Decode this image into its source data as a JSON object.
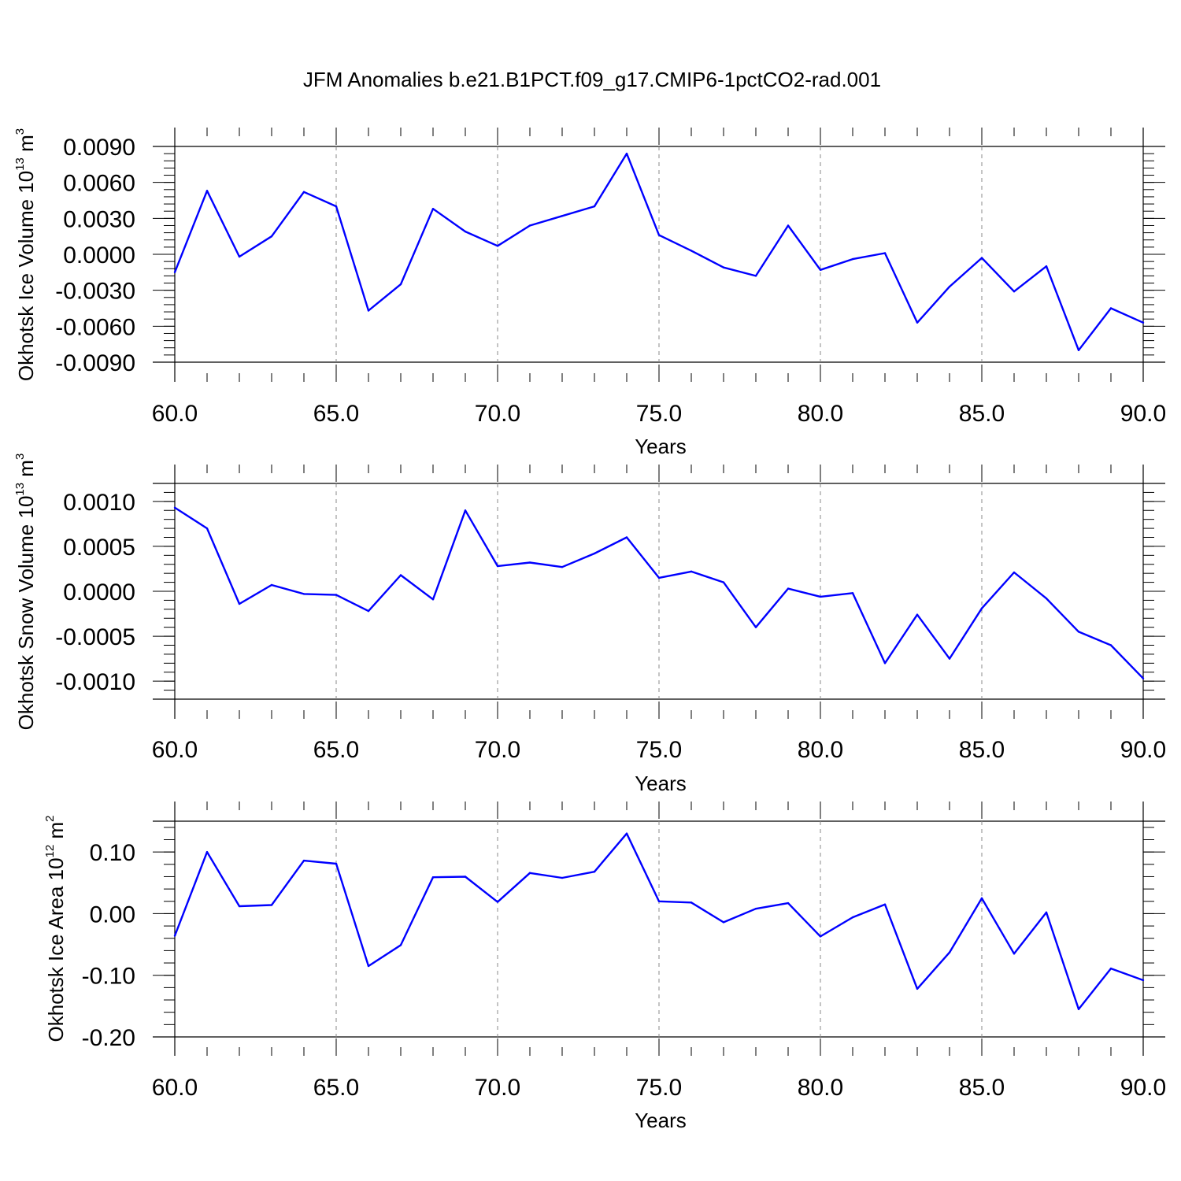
{
  "title": "JFM Anomalies b.e21.B1PCT.f09_g17.CMIP6-1pctCO2-rad.001",
  "colors": {
    "series": "#0000ff",
    "axes": "#000000",
    "grid": "#888888",
    "background": "#ffffff"
  },
  "chart_data": [
    {
      "type": "line",
      "name": "ice-volume",
      "ylabel": "Okhotsk Ice Volume 10",
      "ylabel_exp": "13",
      "ylabel_unit": " m",
      "ylabel_unit_exp": "3",
      "xlabel": "Years",
      "xlim": [
        60,
        90
      ],
      "ylim": [
        -0.009,
        0.009
      ],
      "xticks": [
        60,
        65,
        70,
        75,
        80,
        85,
        90
      ],
      "xtick_labels": [
        "60.0",
        "65.0",
        "70.0",
        "75.0",
        "80.0",
        "85.0",
        "90.0"
      ],
      "yticks": [
        0.009,
        0.006,
        0.003,
        0.0,
        -0.003,
        -0.006,
        -0.009
      ],
      "ytick_labels": [
        "0.0090",
        "0.0060",
        "0.0030",
        "0.0000",
        "-0.0030",
        "-0.0060",
        "-0.0090"
      ],
      "grid": "vertical dashed at major x ticks",
      "x": [
        60,
        61,
        62,
        63,
        64,
        65,
        66,
        67,
        68,
        69,
        70,
        71,
        72,
        73,
        74,
        75,
        76,
        77,
        78,
        79,
        80,
        81,
        82,
        83,
        84,
        85,
        86,
        87,
        88,
        89,
        90
      ],
      "values": [
        -0.0015,
        0.0053,
        -0.0002,
        0.0015,
        0.0052,
        0.004,
        -0.0047,
        -0.0025,
        0.0038,
        0.0019,
        0.0007,
        0.0024,
        0.0032,
        0.004,
        0.0084,
        0.0016,
        0.0003,
        -0.0011,
        -0.0018,
        0.0024,
        -0.0013,
        -0.0004,
        0.0001,
        -0.0057,
        -0.0027,
        -0.0003,
        -0.0031,
        -0.001,
        -0.008,
        -0.0045,
        -0.0057
      ]
    },
    {
      "type": "line",
      "name": "snow-volume",
      "ylabel": "Okhotsk Snow Volume 10",
      "ylabel_exp": "13",
      "ylabel_unit": " m",
      "ylabel_unit_exp": "3",
      "xlabel": "Years",
      "xlim": [
        60,
        90
      ],
      "ylim": [
        -0.0012,
        0.0012
      ],
      "xticks": [
        60,
        65,
        70,
        75,
        80,
        85,
        90
      ],
      "xtick_labels": [
        "60.0",
        "65.0",
        "70.0",
        "75.0",
        "80.0",
        "85.0",
        "90.0"
      ],
      "yticks": [
        0.001,
        0.0005,
        0.0,
        -0.0005,
        -0.001
      ],
      "ytick_labels": [
        "0.0010",
        "0.0005",
        "0.0000",
        "-0.0005",
        "-0.0010"
      ],
      "grid": "vertical dashed at major x ticks",
      "x": [
        60,
        61,
        62,
        63,
        64,
        65,
        66,
        67,
        68,
        69,
        70,
        71,
        72,
        73,
        74,
        75,
        76,
        77,
        78,
        79,
        80,
        81,
        82,
        83,
        84,
        85,
        86,
        87,
        88,
        89,
        90
      ],
      "values": [
        0.00093,
        0.0007,
        -0.00014,
        7e-05,
        -3e-05,
        -4e-05,
        -0.00022,
        0.00018,
        -9e-05,
        0.0009,
        0.00028,
        0.00032,
        0.00027,
        0.00042,
        0.0006,
        0.00015,
        0.00022,
        0.0001,
        -0.0004,
        3e-05,
        -6e-05,
        -2e-05,
        -0.0008,
        -0.00026,
        -0.00075,
        -0.00019,
        0.00021,
        -8e-05,
        -0.00045,
        -0.0006,
        -0.00097
      ]
    },
    {
      "type": "line",
      "name": "ice-area",
      "ylabel": "Okhotsk Ice Area 10",
      "ylabel_exp": "12",
      "ylabel_unit": " m",
      "ylabel_unit_exp": "2",
      "xlabel": "Years",
      "xlim": [
        60,
        90
      ],
      "ylim": [
        -0.2,
        0.15
      ],
      "xticks": [
        60,
        65,
        70,
        75,
        80,
        85,
        90
      ],
      "xtick_labels": [
        "60.0",
        "65.0",
        "70.0",
        "75.0",
        "80.0",
        "85.0",
        "90.0"
      ],
      "yticks": [
        0.1,
        0.0,
        -0.1,
        -0.2
      ],
      "ytick_labels": [
        "0.10",
        "0.00",
        "-0.10",
        "-0.20"
      ],
      "grid": "vertical dashed at major x ticks",
      "x": [
        60,
        61,
        62,
        63,
        64,
        65,
        66,
        67,
        68,
        69,
        70,
        71,
        72,
        73,
        74,
        75,
        76,
        77,
        78,
        79,
        80,
        81,
        82,
        83,
        84,
        85,
        86,
        87,
        88,
        89,
        90
      ],
      "values": [
        -0.036,
        0.1,
        0.012,
        0.014,
        0.086,
        0.081,
        -0.085,
        -0.051,
        0.059,
        0.06,
        0.019,
        0.066,
        0.058,
        0.068,
        0.13,
        0.02,
        0.018,
        -0.014,
        0.008,
        0.017,
        -0.037,
        -0.006,
        0.015,
        -0.122,
        -0.063,
        0.025,
        -0.065,
        0.002,
        -0.155,
        -0.089,
        -0.108
      ]
    }
  ]
}
